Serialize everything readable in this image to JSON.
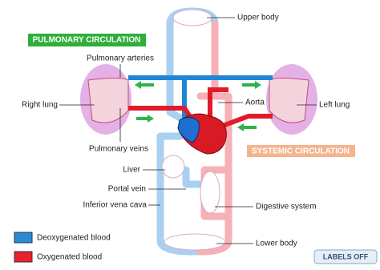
{
  "banners": {
    "pulmonary": "PULMONARY CIRCULATION",
    "systemic": "SYSTEMIC CIRCULATION"
  },
  "labels": {
    "upper_body": "Upper body",
    "pulmonary_arteries": "Pulmonary arteries",
    "right_lung": "Right lung",
    "aorta": "Aorta",
    "left_lung": "Left lung",
    "pulmonary_veins": "Pulmonary veins",
    "liver": "Liver",
    "portal_vein": "Portal vein",
    "inferior_vena_cava": "Inferior vena cava",
    "digestive_system": "Digestive system",
    "lower_body": "Lower body"
  },
  "legend": [
    {
      "label": "Deoxygenated blood",
      "color": "#2a8ad8"
    },
    {
      "label": "Oxygenated blood",
      "color": "#e8202c"
    }
  ],
  "button": "LABELS OFF"
}
